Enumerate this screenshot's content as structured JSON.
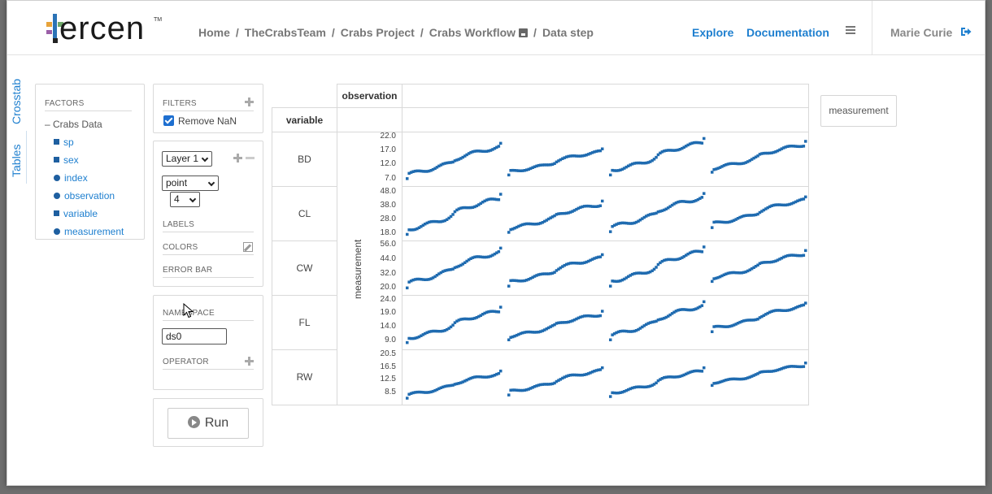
{
  "header": {
    "logo_text": "ercen",
    "logo_tm": "TM",
    "breadcrumb": [
      "Home",
      "TheCrabsTeam",
      "Crabs Project",
      "Crabs Workflow",
      "Data step"
    ],
    "breadcrumb_sep": "/",
    "nav": {
      "explore": "Explore",
      "documentation": "Documentation"
    },
    "user": "Marie Curie"
  },
  "side_tabs": {
    "crosstab": "Crosstab",
    "tables": "Tables"
  },
  "factors": {
    "title": "FACTORS",
    "root": "Crabs Data",
    "items": [
      {
        "label": "sp",
        "kind": "square"
      },
      {
        "label": "sex",
        "kind": "square"
      },
      {
        "label": "index",
        "kind": "dot"
      },
      {
        "label": "observation",
        "kind": "dot"
      },
      {
        "label": "variable",
        "kind": "square"
      },
      {
        "label": "measurement",
        "kind": "dot"
      }
    ]
  },
  "filters": {
    "title": "FILTERS",
    "remove_nan": "Remove NaN",
    "remove_nan_checked": true
  },
  "layer": {
    "layer_select": "Layer 1",
    "geom_select": "point",
    "size_select": "4",
    "labels_title": "LABELS",
    "colors_title": "COLORS",
    "errorbar_title": "ERROR BAR"
  },
  "namespace": {
    "title": "NAMESPACE",
    "value": "ds0",
    "operator_title": "OPERATOR"
  },
  "run": {
    "label": "Run"
  },
  "crosstab": {
    "col_header": "observation",
    "row_header": "variable",
    "y_axis_label": "measurement",
    "chip": "measurement",
    "point_color": "#1f6bb0"
  },
  "chart_data": {
    "type": "scatter",
    "ylabel": "measurement",
    "rows": [
      {
        "name": "BD",
        "ticks": [
          "22.0",
          "17.0",
          "12.0",
          "7.0"
        ],
        "ylim": [
          6,
          22.5
        ],
        "segments": [
          [
            7.2,
            19.8
          ],
          [
            8.5,
            17.8
          ],
          [
            8.5,
            21.5
          ],
          [
            9.5,
            20.5
          ]
        ]
      },
      {
        "name": "CL",
        "ticks": [
          "48.0",
          "38.0",
          "28.0",
          "18.0"
        ],
        "ylim": [
          16,
          50
        ],
        "segments": [
          [
            17.5,
            47
          ],
          [
            19,
            42
          ],
          [
            19.5,
            47.5
          ],
          [
            22.5,
            45
          ]
        ]
      },
      {
        "name": "CW",
        "ticks": [
          "56.0",
          "44.0",
          "32.0",
          "20.0"
        ],
        "ylim": [
          18,
          57
        ],
        "segments": [
          [
            20.5,
            54
          ],
          [
            22,
            48.5
          ],
          [
            22,
            55
          ],
          [
            26,
            52
          ]
        ]
      },
      {
        "name": "FL",
        "ticks": [
          "24.0",
          "19.0",
          "14.0",
          "9.0"
        ],
        "ylim": [
          7.5,
          24.5
        ],
        "segments": [
          [
            8.5,
            21.5
          ],
          [
            9.5,
            20
          ],
          [
            9.5,
            23.5
          ],
          [
            12.5,
            23
          ]
        ]
      },
      {
        "name": "RW",
        "ticks": [
          "20.5",
          "16.5",
          "12.5",
          "8.5"
        ],
        "ylim": [
          6.5,
          21
        ],
        "segments": [
          [
            7,
            15.5
          ],
          [
            8,
            16.5
          ],
          [
            7.5,
            16.5
          ],
          [
            11,
            18
          ]
        ]
      }
    ]
  }
}
